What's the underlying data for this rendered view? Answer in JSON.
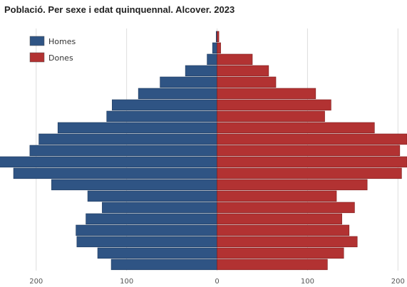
{
  "chart_data": {
    "type": "bar",
    "orientation": "horizontal-population-pyramid",
    "title": "Població. Per sexe i edat quinquennal. Alcover. 2023",
    "xlim": [
      -240,
      210
    ],
    "x_tick_labels": [
      "200",
      "100",
      "0",
      "100",
      "200"
    ],
    "x_tick_values": [
      -200,
      -100,
      0,
      100,
      200
    ],
    "grid": true,
    "legend": "top-left",
    "series": [
      {
        "name": "Homes",
        "color": "#2f5484",
        "values": [
          1,
          5,
          11,
          35,
          63,
          87,
          116,
          122,
          176,
          197,
          207,
          245,
          225,
          183,
          143,
          127,
          145,
          156,
          155,
          132,
          117
        ]
      },
      {
        "name": "Dones",
        "color": "#b23232",
        "values": [
          2,
          4,
          39,
          57,
          65,
          109,
          126,
          119,
          174,
          210,
          202,
          210,
          204,
          166,
          132,
          152,
          138,
          146,
          155,
          140,
          122
        ]
      }
    ],
    "categories_note": "age groups from oldest (top) to youngest (bottom); no category labels printed"
  }
}
